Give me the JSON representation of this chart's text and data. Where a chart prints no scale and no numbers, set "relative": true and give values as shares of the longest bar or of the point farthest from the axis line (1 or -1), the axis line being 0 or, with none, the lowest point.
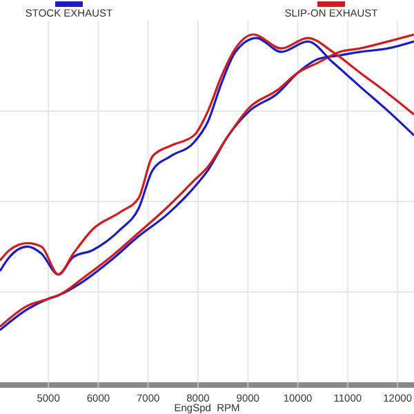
{
  "chart_data": {
    "type": "line",
    "relative": true,
    "xlabel": "EngSpd  RPM",
    "xlim": [
      4030,
      12330
    ],
    "xticks": [
      5000,
      6000,
      7000,
      8000,
      9000,
      10000,
      11000,
      12000
    ],
    "grid": true,
    "legend": "top",
    "line_style": "solid",
    "marker": "none",
    "series": [
      {
        "name": "STOCK EXHAUST",
        "color": "#1c1cc0",
        "x": [
          4030,
          4580,
          5000,
          5200,
          5700,
          6250,
          6810,
          7360,
          7920,
          8200,
          8610,
          9030,
          9590,
          10000,
          10420,
          10840,
          11250,
          11810,
          12330
        ],
        "values": [
          0.15,
          0.21,
          0.24,
          0.25,
          0.29,
          0.35,
          0.42,
          0.48,
          0.56,
          0.61,
          0.71,
          0.78,
          0.83,
          0.89,
          0.93,
          0.94,
          0.95,
          0.96,
          0.98
        ]
      },
      {
        "name": "SLIP-ON EXHAUST",
        "color": "#d01c1c",
        "x": [
          4030,
          4580,
          5000,
          5200,
          5700,
          6250,
          6810,
          7360,
          7920,
          8200,
          8610,
          9030,
          9590,
          10000,
          10420,
          10840,
          11250,
          11810,
          12330
        ],
        "values": [
          0.16,
          0.22,
          0.24,
          0.25,
          0.3,
          0.36,
          0.43,
          0.5,
          0.58,
          0.62,
          0.71,
          0.79,
          0.84,
          0.89,
          0.92,
          0.95,
          0.96,
          0.98,
          1.0
        ]
      },
      {
        "color": "#1c1cc0",
        "x": [
          4030,
          4220,
          4580,
          4860,
          5200,
          5500,
          5890,
          6450,
          6810,
          7090,
          7450,
          7920,
          8200,
          8470,
          8750,
          9170,
          9670,
          10200,
          10700,
          11250,
          11810,
          12330
        ],
        "values": [
          0.32,
          0.36,
          0.39,
          0.37,
          0.31,
          0.36,
          0.38,
          0.44,
          0.5,
          0.61,
          0.65,
          0.69,
          0.75,
          0.86,
          0.95,
          0.99,
          0.95,
          0.98,
          0.92,
          0.85,
          0.78,
          0.71
        ]
      },
      {
        "color": "#d01c1c",
        "x": [
          4030,
          4220,
          4580,
          4860,
          5200,
          5500,
          5890,
          6450,
          6810,
          7090,
          7450,
          7920,
          8200,
          8470,
          8750,
          9110,
          9670,
          10200,
          10700,
          11250,
          11810,
          12330
        ],
        "values": [
          0.35,
          0.38,
          0.4,
          0.39,
          0.31,
          0.37,
          0.44,
          0.49,
          0.53,
          0.65,
          0.68,
          0.71,
          0.78,
          0.88,
          0.96,
          1.0,
          0.96,
          0.99,
          0.95,
          0.89,
          0.83,
          0.77
        ]
      }
    ]
  }
}
